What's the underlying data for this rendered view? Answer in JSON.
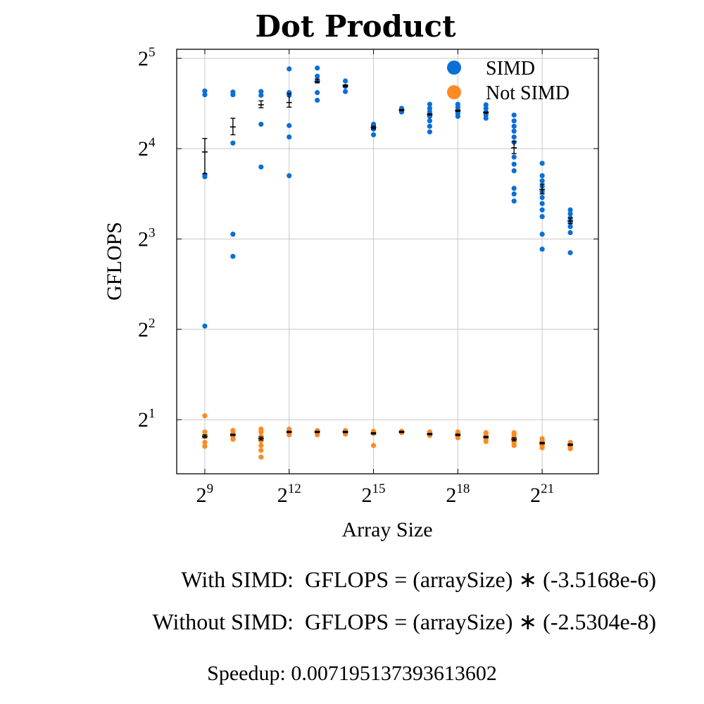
{
  "chart_data": {
    "type": "scatter",
    "title": "Dot Product",
    "xlabel": "Array Size",
    "ylabel": "GFLOPS",
    "x_scale": "log2",
    "y_scale": "log2",
    "xlim": [
      256,
      8388608
    ],
    "ylim": [
      1.32,
      34.3
    ],
    "x_ticks": [
      {
        "base": "2",
        "exp": "9",
        "value": 512
      },
      {
        "base": "2",
        "exp": "12",
        "value": 4096
      },
      {
        "base": "2",
        "exp": "15",
        "value": 32768
      },
      {
        "base": "2",
        "exp": "18",
        "value": 262144
      },
      {
        "base": "2",
        "exp": "21",
        "value": 2097152
      }
    ],
    "y_ticks": [
      {
        "base": "2",
        "exp": "1",
        "value": 2
      },
      {
        "base": "2",
        "exp": "2",
        "value": 4
      },
      {
        "base": "2",
        "exp": "3",
        "value": 8
      },
      {
        "base": "2",
        "exp": "4",
        "value": 16
      },
      {
        "base": "2",
        "exp": "5",
        "value": 32
      }
    ],
    "grid": true,
    "legend_position": "top-right",
    "series": [
      {
        "name": "SIMD",
        "color": "#0a6fd6",
        "points": [
          [
            512,
            4.1
          ],
          [
            512,
            12.9
          ],
          [
            512,
            13.1
          ],
          [
            512,
            24.2
          ],
          [
            512,
            24.9
          ],
          [
            1024,
            7.0
          ],
          [
            1024,
            8.3
          ],
          [
            1024,
            16.7
          ],
          [
            1024,
            24.2
          ],
          [
            1024,
            24.7
          ],
          [
            2048,
            13.9
          ],
          [
            2048,
            19.3
          ],
          [
            2048,
            24.1
          ],
          [
            2048,
            24.8
          ],
          [
            4096,
            13.0
          ],
          [
            4096,
            17.5
          ],
          [
            4096,
            19.1
          ],
          [
            4096,
            24.1
          ],
          [
            4096,
            24.6
          ],
          [
            4096,
            29.5
          ],
          [
            8192,
            23.2
          ],
          [
            8192,
            24.6
          ],
          [
            8192,
            26.9
          ],
          [
            8192,
            27.9
          ],
          [
            8192,
            29.7
          ],
          [
            16384,
            24.8
          ],
          [
            16384,
            25.8
          ],
          [
            16384,
            26.9
          ],
          [
            32768,
            17.8
          ],
          [
            32768,
            18.6
          ],
          [
            32768,
            19.0
          ],
          [
            32768,
            19.3
          ],
          [
            65536,
            21.2
          ],
          [
            65536,
            21.5
          ],
          [
            65536,
            21.8
          ],
          [
            131072,
            18.2
          ],
          [
            131072,
            19.0
          ],
          [
            131072,
            19.8
          ],
          [
            131072,
            20.5
          ],
          [
            131072,
            21.2
          ],
          [
            131072,
            21.8
          ],
          [
            131072,
            22.5
          ],
          [
            262144,
            20.5
          ],
          [
            262144,
            21.0
          ],
          [
            262144,
            21.5
          ],
          [
            262144,
            22.0
          ],
          [
            262144,
            22.5
          ],
          [
            524288,
            20.2
          ],
          [
            524288,
            20.7
          ],
          [
            524288,
            21.2
          ],
          [
            524288,
            21.8
          ],
          [
            524288,
            22.4
          ],
          [
            1048576,
            10.7
          ],
          [
            1048576,
            11.3
          ],
          [
            1048576,
            11.8
          ],
          [
            1048576,
            13.5
          ],
          [
            1048576,
            14.2
          ],
          [
            1048576,
            15.0
          ],
          [
            1048576,
            16.8
          ],
          [
            1048576,
            17.5
          ],
          [
            1048576,
            18.3
          ],
          [
            1048576,
            19.0
          ],
          [
            1048576,
            19.8
          ],
          [
            1048576,
            20.7
          ],
          [
            2097152,
            7.4
          ],
          [
            2097152,
            8.3
          ],
          [
            2097152,
            9.5
          ],
          [
            2097152,
            10.0
          ],
          [
            2097152,
            10.5
          ],
          [
            2097152,
            11.0
          ],
          [
            2097152,
            11.5
          ],
          [
            2097152,
            12.0
          ],
          [
            2097152,
            12.5
          ],
          [
            2097152,
            13.0
          ],
          [
            2097152,
            14.3
          ],
          [
            4194304,
            7.2
          ],
          [
            4194304,
            8.4
          ],
          [
            4194304,
            8.8
          ],
          [
            4194304,
            9.1
          ],
          [
            4194304,
            9.4
          ],
          [
            4194304,
            9.7
          ],
          [
            4194304,
            10.0
          ]
        ],
        "means": [
          [
            512,
            15.6,
            13.2,
            17.3
          ],
          [
            1024,
            18.9,
            17.8,
            20.2
          ],
          [
            2048,
            22.4,
            21.9,
            23.1
          ],
          [
            4096,
            22.8,
            22.0,
            24.4
          ],
          [
            8192,
            26.8,
            26.5,
            27.3
          ],
          [
            16384,
            25.9,
            25.7,
            26.1
          ],
          [
            32768,
            18.8,
            18.6,
            19.0
          ],
          [
            65536,
            21.5,
            21.4,
            21.6
          ],
          [
            131072,
            20.8,
            20.7,
            20.9
          ],
          [
            262144,
            21.4,
            21.3,
            21.5
          ],
          [
            524288,
            21.1,
            21.0,
            21.2
          ],
          [
            1048576,
            16.1,
            15.4,
            16.9
          ],
          [
            2097152,
            11.7,
            11.3,
            12.2
          ],
          [
            4194304,
            9.2,
            9.0,
            9.4
          ]
        ]
      },
      {
        "name": "Not SIMD",
        "color": "#fe8a24",
        "points": [
          [
            512,
            1.63
          ],
          [
            512,
            1.68
          ],
          [
            512,
            1.76
          ],
          [
            512,
            1.82
          ],
          [
            512,
            2.06
          ],
          [
            1024,
            1.72
          ],
          [
            1024,
            1.76
          ],
          [
            1024,
            1.8
          ],
          [
            1024,
            1.84
          ],
          [
            2048,
            1.5
          ],
          [
            2048,
            1.58
          ],
          [
            2048,
            1.64
          ],
          [
            2048,
            1.7
          ],
          [
            2048,
            1.76
          ],
          [
            2048,
            1.82
          ],
          [
            2048,
            1.86
          ],
          [
            4096,
            1.78
          ],
          [
            4096,
            1.82
          ],
          [
            4096,
            1.86
          ],
          [
            8192,
            1.78
          ],
          [
            8192,
            1.82
          ],
          [
            8192,
            1.84
          ],
          [
            16384,
            1.79
          ],
          [
            16384,
            1.82
          ],
          [
            16384,
            1.84
          ],
          [
            32768,
            1.64
          ],
          [
            32768,
            1.8
          ],
          [
            32768,
            1.83
          ],
          [
            65536,
            1.81
          ],
          [
            65536,
            1.83
          ],
          [
            131072,
            1.77
          ],
          [
            131072,
            1.79
          ],
          [
            131072,
            1.82
          ],
          [
            262144,
            1.74
          ],
          [
            262144,
            1.77
          ],
          [
            262144,
            1.8
          ],
          [
            262144,
            1.82
          ],
          [
            524288,
            1.69
          ],
          [
            524288,
            1.72
          ],
          [
            524288,
            1.75
          ],
          [
            524288,
            1.78
          ],
          [
            524288,
            1.81
          ],
          [
            1048576,
            1.64
          ],
          [
            1048576,
            1.67
          ],
          [
            1048576,
            1.7
          ],
          [
            1048576,
            1.73
          ],
          [
            1048576,
            1.76
          ],
          [
            1048576,
            1.79
          ],
          [
            1048576,
            1.81
          ],
          [
            2097152,
            1.61
          ],
          [
            2097152,
            1.64
          ],
          [
            2097152,
            1.67
          ],
          [
            2097152,
            1.7
          ],
          [
            2097152,
            1.73
          ],
          [
            4194304,
            1.6
          ],
          [
            4194304,
            1.62
          ],
          [
            4194304,
            1.64
          ],
          [
            4194304,
            1.66
          ],
          [
            4194304,
            1.68
          ]
        ],
        "means": [
          [
            512,
            1.76,
            1.74,
            1.78
          ],
          [
            1024,
            1.78,
            1.77,
            1.79
          ],
          [
            2048,
            1.73,
            1.71,
            1.75
          ],
          [
            4096,
            1.82,
            1.81,
            1.83
          ],
          [
            8192,
            1.82,
            1.81,
            1.83
          ],
          [
            16384,
            1.82,
            1.81,
            1.83
          ],
          [
            32768,
            1.8,
            1.79,
            1.81
          ],
          [
            65536,
            1.82,
            1.81,
            1.83
          ],
          [
            131072,
            1.79,
            1.78,
            1.8
          ],
          [
            262144,
            1.78,
            1.77,
            1.79
          ],
          [
            524288,
            1.75,
            1.74,
            1.76
          ],
          [
            1048576,
            1.72,
            1.7,
            1.74
          ],
          [
            2097152,
            1.67,
            1.66,
            1.68
          ],
          [
            4194304,
            1.65,
            1.64,
            1.66
          ]
        ]
      }
    ]
  },
  "formulas": {
    "simd": "With SIMD:  GFLOPS = (arraySize) ∗ (-3.5168e-6)",
    "no_simd": "Without SIMD:  GFLOPS = (arraySize) ∗ (-2.5304e-8)"
  },
  "speedup": "Speedup: 0.007195137393613602"
}
